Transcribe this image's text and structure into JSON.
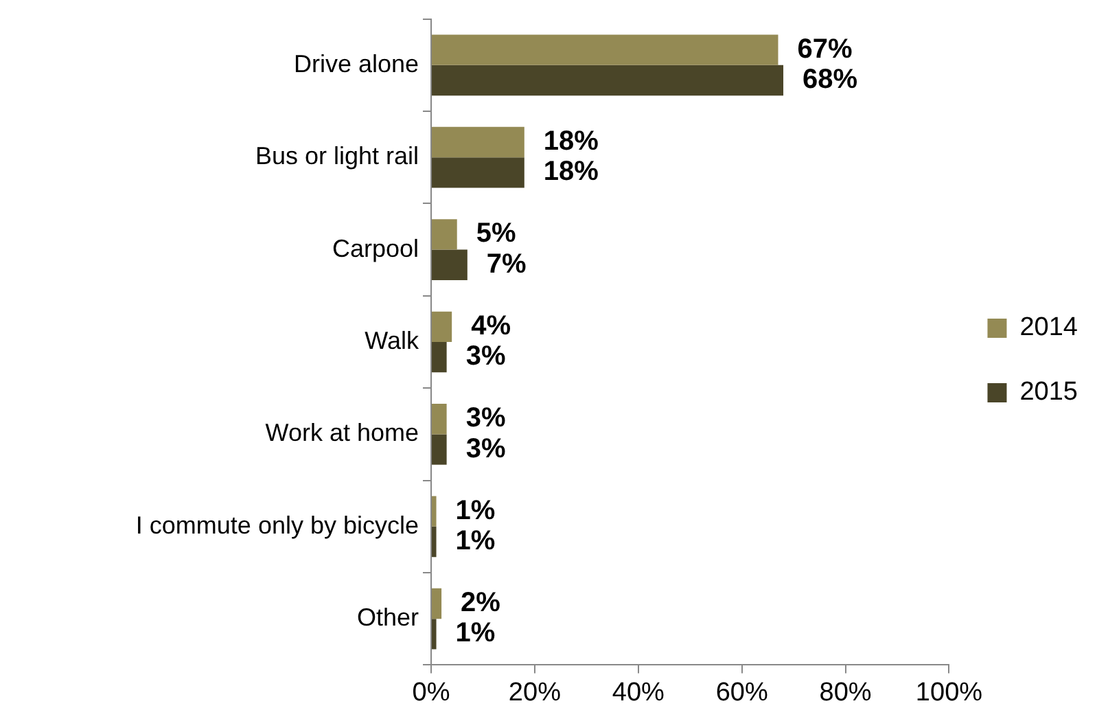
{
  "chart_data": {
    "type": "bar",
    "orientation": "horizontal",
    "categories": [
      "Drive alone",
      "Bus or light rail",
      "Carpool",
      "Walk",
      "Work at home",
      "I commute only by bicycle",
      "Other"
    ],
    "series": [
      {
        "name": "2014",
        "color": "#948a54",
        "values": [
          67,
          18,
          5,
          4,
          3,
          1,
          2
        ],
        "value_labels": [
          "67%",
          "18%",
          "5%",
          "4%",
          "3%",
          "1%",
          "2%"
        ]
      },
      {
        "name": "2015",
        "color": "#4a4528",
        "values": [
          68,
          18,
          7,
          3,
          3,
          1,
          1
        ],
        "value_labels": [
          "68%",
          "18%",
          "7%",
          "3%",
          "3%",
          "1%",
          "1%"
        ]
      }
    ],
    "xlim": [
      0,
      100
    ],
    "xticks": [
      {
        "value": 0,
        "label": "0%"
      },
      {
        "value": 20,
        "label": "20%"
      },
      {
        "value": 40,
        "label": "40%"
      },
      {
        "value": 60,
        "label": "60%"
      },
      {
        "value": 80,
        "label": "80%"
      },
      {
        "value": 100,
        "label": "100%"
      }
    ],
    "grid": false,
    "legend": "right"
  }
}
